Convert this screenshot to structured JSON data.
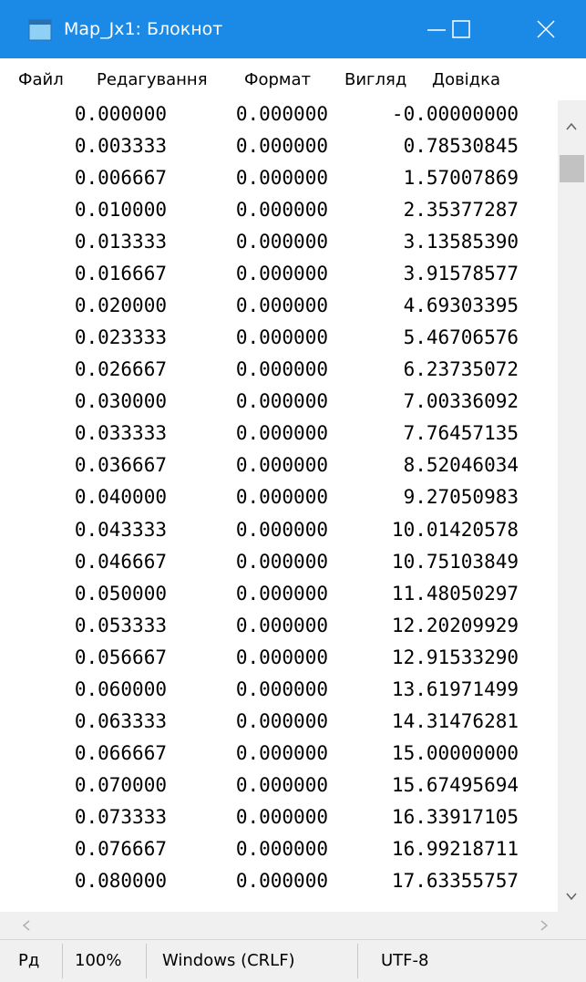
{
  "window": {
    "title": "Map_Jx1: Блокнот"
  },
  "menu": [
    "Файл",
    "Редагування",
    "Формат",
    "Вигляд",
    "Довідка"
  ],
  "rows": [
    [
      "0.000000",
      "0.000000",
      "-0.00000000"
    ],
    [
      "0.003333",
      "0.000000",
      "0.78530845"
    ],
    [
      "0.006667",
      "0.000000",
      "1.57007869"
    ],
    [
      "0.010000",
      "0.000000",
      "2.35377287"
    ],
    [
      "0.013333",
      "0.000000",
      "3.13585390"
    ],
    [
      "0.016667",
      "0.000000",
      "3.91578577"
    ],
    [
      "0.020000",
      "0.000000",
      "4.69303395"
    ],
    [
      "0.023333",
      "0.000000",
      "5.46706576"
    ],
    [
      "0.026667",
      "0.000000",
      "6.23735072"
    ],
    [
      "0.030000",
      "0.000000",
      "7.00336092"
    ],
    [
      "0.033333",
      "0.000000",
      "7.76457135"
    ],
    [
      "0.036667",
      "0.000000",
      "8.52046034"
    ],
    [
      "0.040000",
      "0.000000",
      "9.27050983"
    ],
    [
      "0.043333",
      "0.000000",
      "10.01420578"
    ],
    [
      "0.046667",
      "0.000000",
      "10.75103849"
    ],
    [
      "0.050000",
      "0.000000",
      "11.48050297"
    ],
    [
      "0.053333",
      "0.000000",
      "12.20209929"
    ],
    [
      "0.056667",
      "0.000000",
      "12.91533290"
    ],
    [
      "0.060000",
      "0.000000",
      "13.61971499"
    ],
    [
      "0.063333",
      "0.000000",
      "14.31476281"
    ],
    [
      "0.066667",
      "0.000000",
      "15.00000000"
    ],
    [
      "0.070000",
      "0.000000",
      "15.67495694"
    ],
    [
      "0.073333",
      "0.000000",
      "16.33917105"
    ],
    [
      "0.076667",
      "0.000000",
      "16.99218711"
    ],
    [
      "0.080000",
      "0.000000",
      "17.63355757"
    ]
  ],
  "status": [
    "Рд",
    "100%",
    "Windows (CRLF)",
    "UTF-8"
  ]
}
